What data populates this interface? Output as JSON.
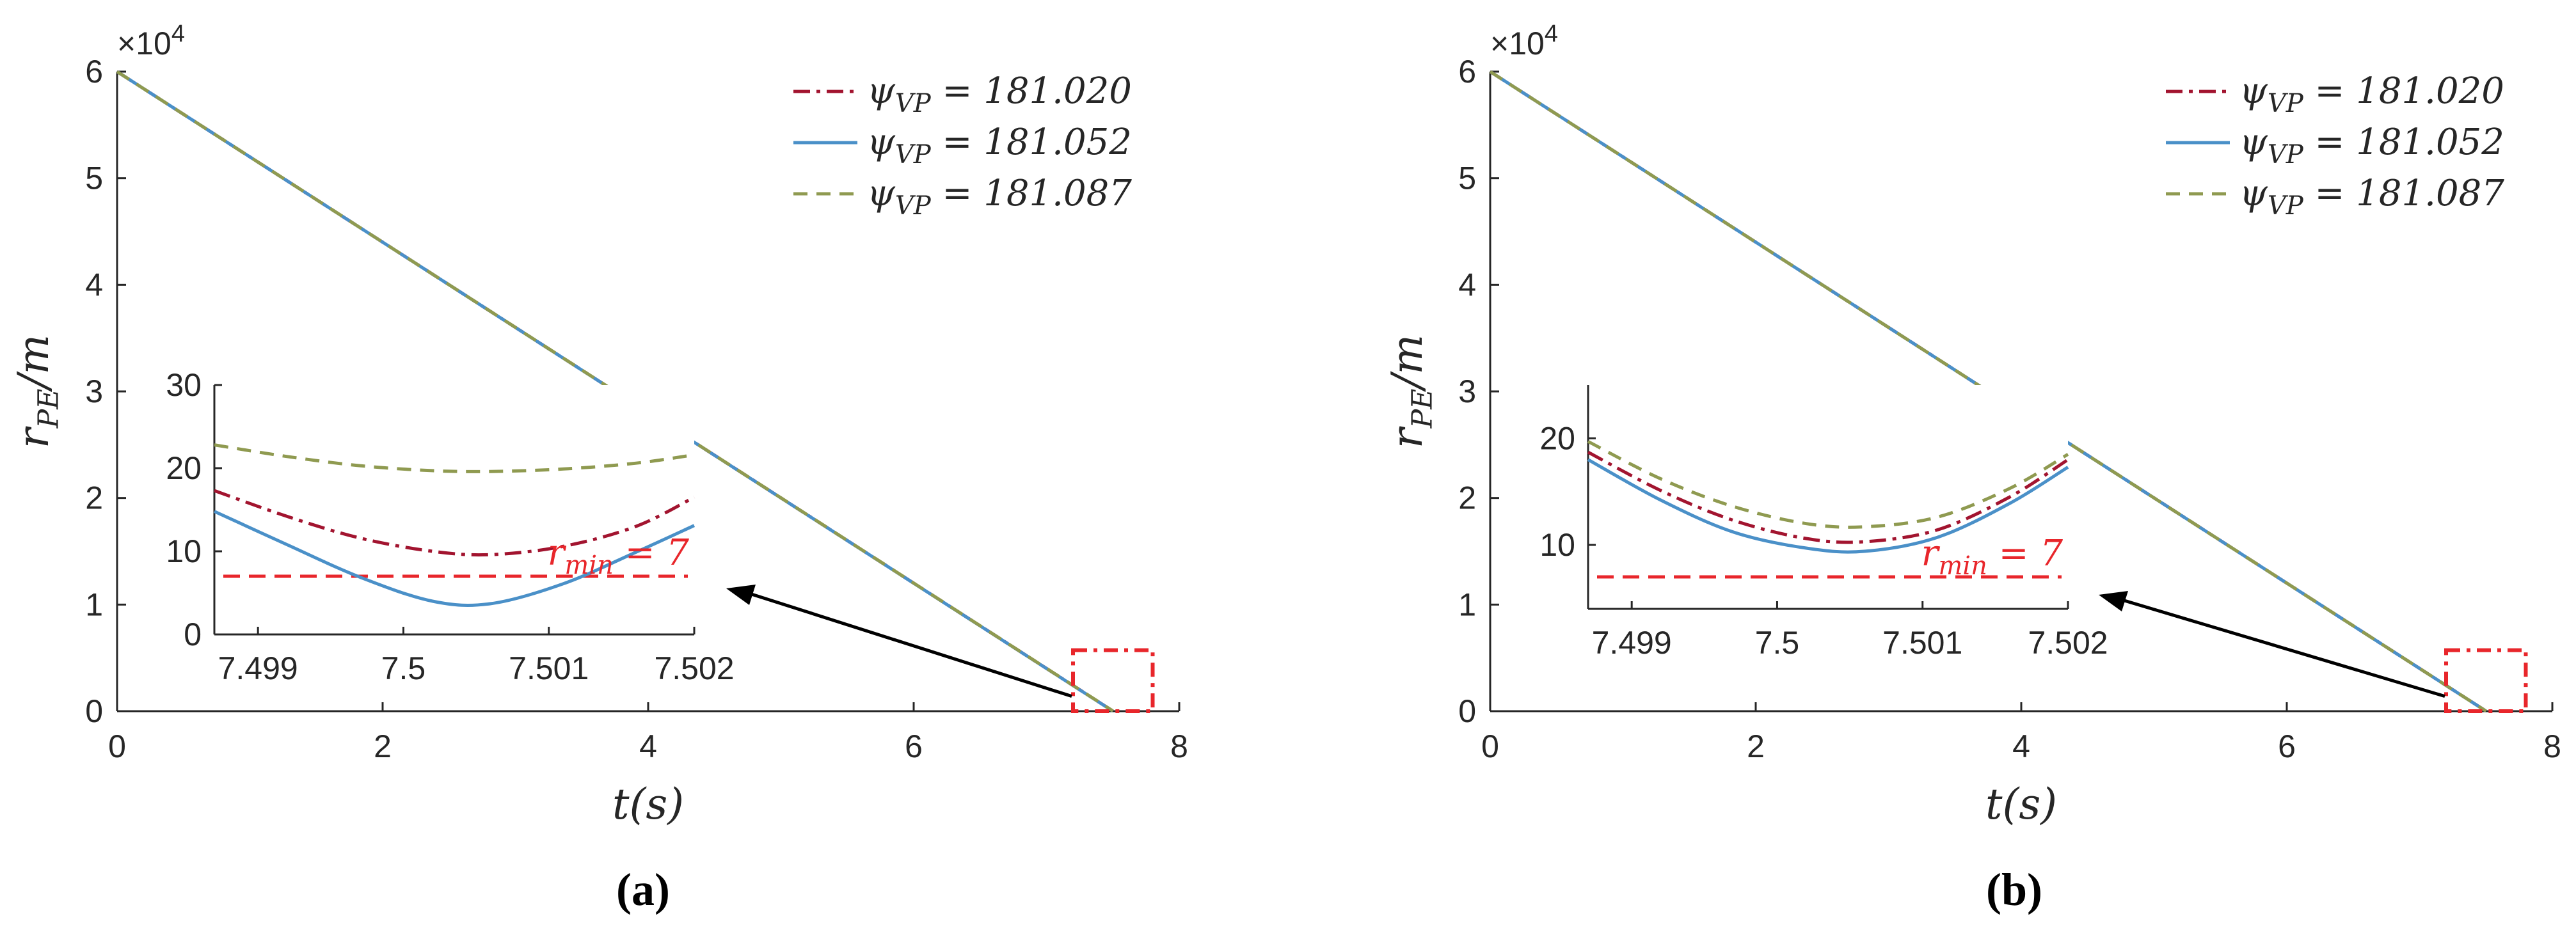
{
  "chart_data": [
    {
      "type": "line",
      "panel_label": "(a)",
      "xlabel": "t(s)",
      "ylabel": "r_PE/m",
      "xlim": [
        0,
        8
      ],
      "ylim": [
        0,
        60000
      ],
      "x_ticks": [
        "0",
        "2",
        "4",
        "6",
        "8"
      ],
      "y_ticks": [
        "0",
        "1",
        "2",
        "3",
        "4",
        "5",
        "6"
      ],
      "y_exponent": "×10^4",
      "legend_placement": "top-right",
      "series": [
        {
          "name": "ψ_VP = 181.020",
          "color": "#a2142f",
          "style": "dashdot",
          "x": [
            0,
            7.5005
          ],
          "y": [
            60000,
            10
          ]
        },
        {
          "name": "ψ_VP = 181.052",
          "color": "#4a90c8",
          "style": "solid",
          "x": [
            0,
            7.5005
          ],
          "y": [
            60000,
            3
          ]
        },
        {
          "name": "ψ_VP = 181.087",
          "color": "#8f9a50",
          "style": "dashed",
          "x": [
            0,
            7.5005
          ],
          "y": [
            60000,
            21
          ]
        }
      ],
      "zoom_box": {
        "xlim": [
          7.2,
          7.8
        ],
        "ylim": [
          0,
          5000
        ]
      },
      "inset": {
        "xlim": [
          7.4987,
          7.502
        ],
        "ylim": [
          0,
          30
        ],
        "x_ticks": [
          "7.499",
          "7.5",
          "7.501",
          "7.502"
        ],
        "y_ticks": [
          "0",
          "10",
          "20",
          "30"
        ],
        "threshold": {
          "label": "r_min = 7",
          "value": 7
        },
        "series": [
          {
            "name": "ψ_VP = 181.020",
            "x": [
              7.4987,
              7.4992,
              7.4997,
              7.5002,
              7.5006,
              7.5011,
              7.5016,
              7.502
            ],
            "y": [
              17.3,
              14.2,
              11.6,
              10.0,
              9.6,
              10.6,
              13.0,
              16.5
            ]
          },
          {
            "name": "ψ_VP = 181.052",
            "x": [
              7.4987,
              7.4992,
              7.4997,
              7.5002,
              7.5006,
              7.5011,
              7.5016,
              7.502
            ],
            "y": [
              14.8,
              10.8,
              6.9,
              4.0,
              3.7,
              6.1,
              9.9,
              13.1
            ]
          },
          {
            "name": "ψ_VP = 181.087",
            "x": [
              7.4987,
              7.4992,
              7.4997,
              7.5002,
              7.5006,
              7.5011,
              7.5016,
              7.502
            ],
            "y": [
              22.8,
              21.4,
              20.3,
              19.7,
              19.6,
              19.9,
              20.6,
              21.6
            ]
          }
        ]
      }
    },
    {
      "type": "line",
      "panel_label": "(b)",
      "xlabel": "t(s)",
      "ylabel": "r_PE/m",
      "xlim": [
        0,
        8
      ],
      "ylim": [
        0,
        60000
      ],
      "x_ticks": [
        "0",
        "2",
        "4",
        "6",
        "8"
      ],
      "y_ticks": [
        "0",
        "1",
        "2",
        "3",
        "4",
        "5",
        "6"
      ],
      "y_exponent": "×10^4",
      "legend_placement": "top-right",
      "series": [
        {
          "name": "ψ_VP = 181.020",
          "color": "#a2142f",
          "style": "dashdot",
          "x": [
            0,
            7.5005
          ],
          "y": [
            60000,
            11
          ]
        },
        {
          "name": "ψ_VP = 181.052",
          "color": "#4a90c8",
          "style": "solid",
          "x": [
            0,
            7.5005
          ],
          "y": [
            60000,
            9
          ]
        },
        {
          "name": "ψ_VP = 181.087",
          "color": "#8f9a50",
          "style": "dashed",
          "x": [
            0,
            7.5005
          ],
          "y": [
            60000,
            12
          ]
        }
      ],
      "zoom_box": {
        "xlim": [
          7.2,
          7.8
        ],
        "ylim": [
          0,
          5000
        ]
      },
      "inset": {
        "xlim": [
          7.4987,
          7.502
        ],
        "ylim": [
          4,
          25
        ],
        "x_ticks": [
          "7.499",
          "7.5",
          "7.501",
          "7.502"
        ],
        "y_ticks": [
          "10",
          "20"
        ],
        "threshold": {
          "label": "r_min = 7",
          "value": 7
        },
        "series": [
          {
            "name": "ψ_VP = 181.020",
            "x": [
              7.4987,
              7.4992,
              7.4997,
              7.5002,
              7.5006,
              7.5011,
              7.5016,
              7.502
            ],
            "y": [
              18.7,
              15.1,
              12.3,
              10.6,
              10.3,
              11.4,
              14.5,
              18.0
            ]
          },
          {
            "name": "ψ_VP = 181.052",
            "x": [
              7.4987,
              7.4992,
              7.4997,
              7.5002,
              7.5006,
              7.5011,
              7.5016,
              7.502
            ],
            "y": [
              18.0,
              14.2,
              11.2,
              9.7,
              9.4,
              10.7,
              13.9,
              17.3
            ]
          },
          {
            "name": "ψ_VP = 181.087",
            "x": [
              7.4987,
              7.4992,
              7.4997,
              7.5002,
              7.5006,
              7.5011,
              7.5016,
              7.502
            ],
            "y": [
              19.7,
              16.2,
              13.6,
              12.0,
              11.7,
              12.6,
              15.3,
              18.5
            ]
          }
        ]
      }
    }
  ]
}
